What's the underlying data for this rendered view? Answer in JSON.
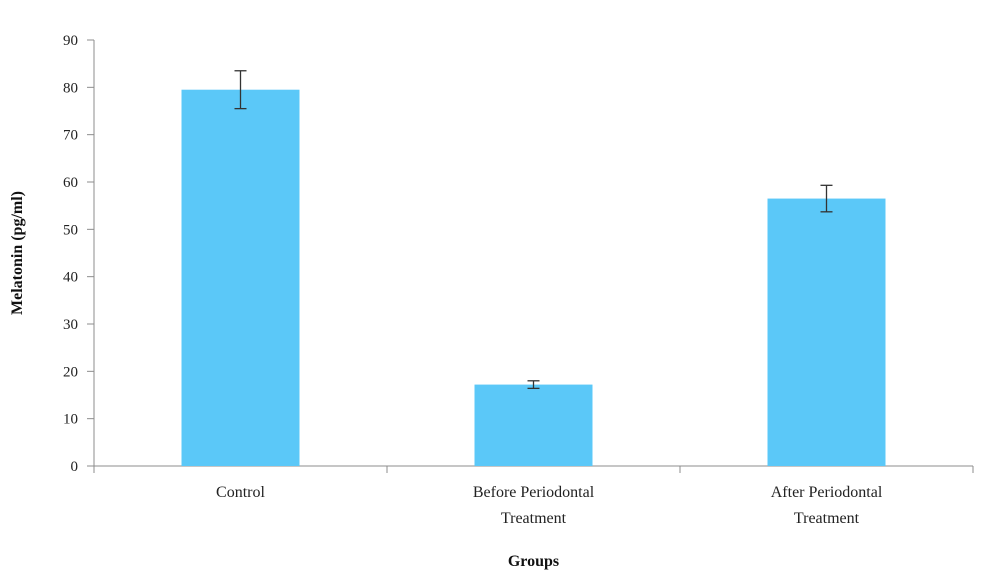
{
  "chart_data": {
    "type": "bar",
    "title": "",
    "xlabel": "Groups",
    "ylabel": "Melatonin (pg/ml)",
    "ylim": [
      0,
      90
    ],
    "yticks": [
      0,
      10,
      20,
      30,
      40,
      50,
      60,
      70,
      80,
      90
    ],
    "grid": false,
    "categories": [
      [
        "Control"
      ],
      [
        "Before Periodontal",
        "Treatment"
      ],
      [
        "After Periodontal",
        "Treatment"
      ]
    ],
    "values": [
      79.5,
      17.2,
      56.5
    ],
    "errors": [
      4.0,
      0.8,
      2.8
    ],
    "colors": {
      "bar": "#5bc8f8",
      "axis": "#8c8c8c",
      "error_bar": "#333333"
    }
  }
}
